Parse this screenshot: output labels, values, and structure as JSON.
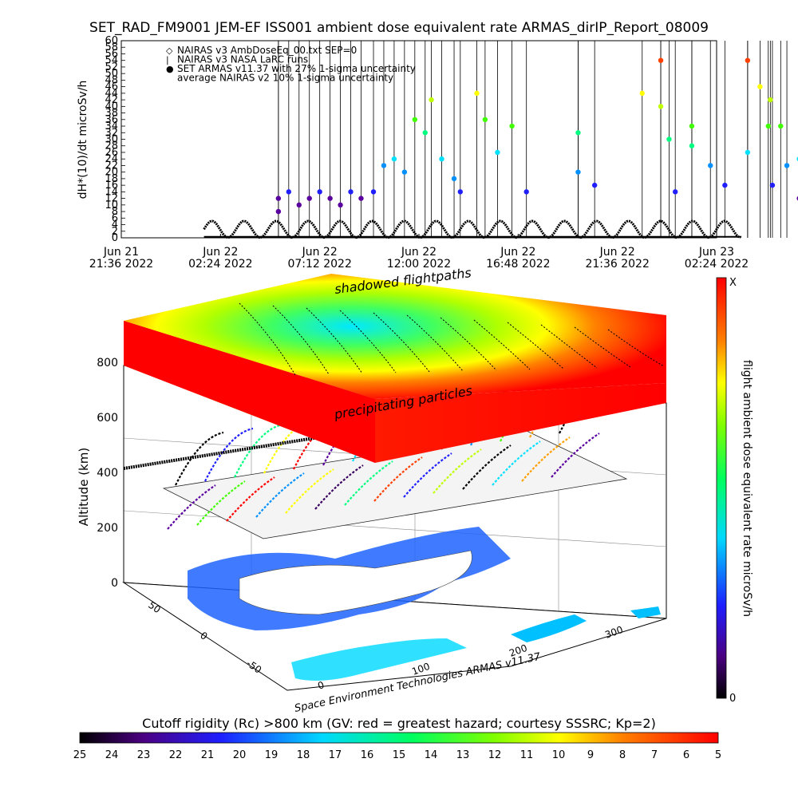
{
  "title": "SET_RAD_FM9001  JEM-EF ISS001 ambient dose equivalent rate ARMAS_dirIP_Report_08009",
  "chart_data": [
    {
      "type": "line",
      "panel": "time-series",
      "ylabel": "dH*(10)/dt microSv/h",
      "ylim": [
        0,
        60
      ],
      "yticks": [
        "0",
        "2",
        "4",
        "6",
        "8",
        "10",
        "12",
        "14",
        "16",
        "18",
        "20",
        "22",
        "24",
        "26",
        "28",
        "30",
        "32",
        "34",
        "36",
        "38",
        "40",
        "42",
        "44",
        "46",
        "48",
        "50",
        "52",
        "54",
        "56",
        "58",
        "60"
      ],
      "xticks": [
        {
          "day": "Jun 21",
          "time": "21:36 2022"
        },
        {
          "day": "Jun 22",
          "time": "02:24 2022"
        },
        {
          "day": "Jun 22",
          "time": "07:12 2022"
        },
        {
          "day": "Jun 22",
          "time": "12:00 2022"
        },
        {
          "day": "Jun 22",
          "time": "16:48 2022"
        },
        {
          "day": "Jun 22",
          "time": "21:36 2022"
        },
        {
          "day": "Jun 23",
          "time": "02:24 2022"
        }
      ],
      "legend": [
        {
          "symbol": "◇",
          "label": "NAIRAS v3 AmbDoseEq_00.txt SEP=0"
        },
        {
          "symbol": "|",
          "label": "NAIRAS v3 NASA LaRC runs"
        },
        {
          "symbol": "●",
          "label": "SET ARMAS v11.37 with 27% 1-sigma uncertainty"
        },
        {
          "symbol": "",
          "label": "average NAIRAS v2 10% 1-sigma uncertainty"
        }
      ],
      "series": [
        {
          "name": "NAIRAS v3 AmbDoseEq_00.txt SEP=0",
          "note": "orbital oscillation between 0 and ~5 microSv/h",
          "x_hours": [
            4,
            30
          ],
          "range": [
            0,
            5.5
          ]
        },
        {
          "name": "SET ARMAS v11.37 with 27% 1-sigma uncertainty",
          "points": [
            {
              "t": 7.6,
              "v": 12
            },
            {
              "t": 7.6,
              "v": 8
            },
            {
              "t": 8.1,
              "v": 14
            },
            {
              "t": 8.6,
              "v": 10
            },
            {
              "t": 9.1,
              "v": 12
            },
            {
              "t": 9.6,
              "v": 14
            },
            {
              "t": 10.1,
              "v": 12
            },
            {
              "t": 10.6,
              "v": 10
            },
            {
              "t": 11.1,
              "v": 14
            },
            {
              "t": 11.6,
              "v": 12
            },
            {
              "t": 12.2,
              "v": 14
            },
            {
              "t": 12.7,
              "v": 22
            },
            {
              "t": 13.2,
              "v": 24
            },
            {
              "t": 13.7,
              "v": 20
            },
            {
              "t": 14.2,
              "v": 36
            },
            {
              "t": 14.7,
              "v": 32
            },
            {
              "t": 15.0,
              "v": 42
            },
            {
              "t": 15.5,
              "v": 24
            },
            {
              "t": 16.1,
              "v": 18
            },
            {
              "t": 16.4,
              "v": 14
            },
            {
              "t": 17.2,
              "v": 44
            },
            {
              "t": 17.6,
              "v": 36
            },
            {
              "t": 18.2,
              "v": 26
            },
            {
              "t": 18.9,
              "v": 34
            },
            {
              "t": 19.6,
              "v": 14
            },
            {
              "t": 22.1,
              "v": 32
            },
            {
              "t": 22.1,
              "v": 20
            },
            {
              "t": 22.9,
              "v": 16
            },
            {
              "t": 25.2,
              "v": 44
            },
            {
              "t": 26.1,
              "v": 54
            },
            {
              "t": 26.1,
              "v": 40
            },
            {
              "t": 26.5,
              "v": 30
            },
            {
              "t": 26.8,
              "v": 14
            },
            {
              "t": 27.6,
              "v": 34
            },
            {
              "t": 27.6,
              "v": 28
            },
            {
              "t": 28.5,
              "v": 22
            },
            {
              "t": 29.2,
              "v": 16
            },
            {
              "t": 30.3,
              "v": 54
            },
            {
              "t": 30.3,
              "v": 26
            },
            {
              "t": 30.9,
              "v": 46
            },
            {
              "t": 31.3,
              "v": 34
            },
            {
              "t": 31.4,
              "v": 42
            },
            {
              "t": 31.5,
              "v": 16
            },
            {
              "t": 31.9,
              "v": 34
            },
            {
              "t": 32.2,
              "v": 22
            },
            {
              "t": 32.8,
              "v": 24
            },
            {
              "t": 32.8,
              "v": 12
            },
            {
              "t": 33.1,
              "v": 8
            }
          ]
        }
      ],
      "time_axis_hours": [
        0,
        28.8
      ]
    },
    {
      "type": "heatmap",
      "panel": "3d-flightpath",
      "zlabel": "Altitude (km)",
      "zticks": [
        "0",
        "200",
        "400",
        "600",
        "800"
      ],
      "lon_ticks": [
        "0",
        "100",
        "200",
        "300"
      ],
      "lat_ticks": [
        "-50",
        "0",
        "50"
      ],
      "annotations": [
        "shadowed flightpaths",
        "precipitating particles"
      ],
      "credit": "Space Environment Technologies ARMAS v11.37"
    }
  ],
  "right_colorbar": {
    "label": "flight ambient dose equivalent rate microSv/h",
    "top_label": "X",
    "bottom_label": "0"
  },
  "bottom_colorbar": {
    "label": "Cutoff rigidity (Rc) >800 km (GV: red = greatest hazard; courtesy SSSRC; Kp=2)",
    "ticks": [
      "25",
      "24",
      "23",
      "22",
      "21",
      "20",
      "19",
      "18",
      "17",
      "16",
      "15",
      "14",
      "13",
      "12",
      "11",
      "10",
      "9",
      "8",
      "7",
      "6",
      "5"
    ]
  },
  "colors": {
    "rainbow": [
      "#000000",
      "#3a0060",
      "#5a00a0",
      "#2020ff",
      "#0090ff",
      "#00e0ff",
      "#00ff80",
      "#40ff00",
      "#c0ff00",
      "#ffff00",
      "#ffa000",
      "#ff4000",
      "#ff0000"
    ]
  }
}
